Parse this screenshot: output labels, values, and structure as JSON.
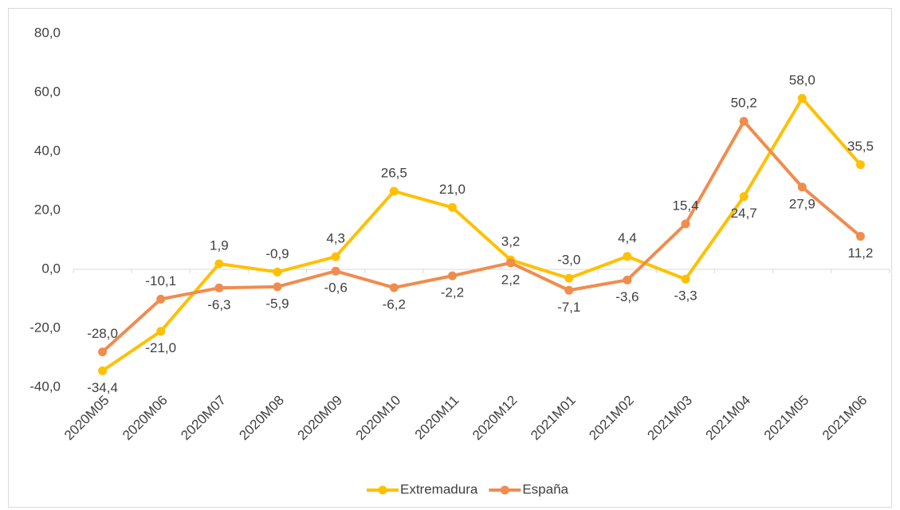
{
  "chart_data": {
    "type": "line",
    "categories": [
      "2020M05",
      "2020M06",
      "2020M07",
      "2020M08",
      "2020M09",
      "2020M10",
      "2020M11",
      "2020M12",
      "2021M01",
      "2021M02",
      "2021M03",
      "2021M04",
      "2021M05",
      "2021M06"
    ],
    "series": [
      {
        "name": "Extremadura",
        "color": "#FFC000",
        "values": [
          -34.4,
          -21.0,
          1.9,
          -0.9,
          4.3,
          26.5,
          21.0,
          3.2,
          -3.0,
          4.4,
          -3.3,
          24.7,
          58.0,
          35.5
        ],
        "value_labels": [
          "-34,4",
          "-21,0",
          "1,9",
          "-0,9",
          "4,3",
          "26,5",
          "21,0",
          "3,2",
          "-3,0",
          "4,4",
          "-3,3",
          "24,7",
          "58,0",
          "35,5"
        ]
      },
      {
        "name": "España",
        "color": "#F08C4E",
        "values": [
          -28.0,
          -10.1,
          -6.3,
          -5.9,
          -0.6,
          -6.2,
          -2.2,
          2.2,
          -7.1,
          -3.6,
          15.4,
          50.2,
          27.9,
          11.2
        ],
        "value_labels": [
          "-28,0",
          "-10,1",
          "-6,3",
          "-5,9",
          "-0,6",
          "-6,2",
          "-2,2",
          "2,2",
          "-7,1",
          "-3,6",
          "15,4",
          "50,2",
          "27,9",
          "11,2"
        ]
      }
    ],
    "ylim": [
      -40,
      80
    ],
    "yticks": [
      {
        "value": -40,
        "label": "-40,0"
      },
      {
        "value": -20,
        "label": "-20,0"
      },
      {
        "value": 0,
        "label": "0,0"
      },
      {
        "value": 20,
        "label": "20,0"
      },
      {
        "value": 40,
        "label": "40,0"
      },
      {
        "value": 60,
        "label": "60,0"
      },
      {
        "value": 80,
        "label": "80,0"
      }
    ],
    "grid": false,
    "legend": "bottom"
  }
}
